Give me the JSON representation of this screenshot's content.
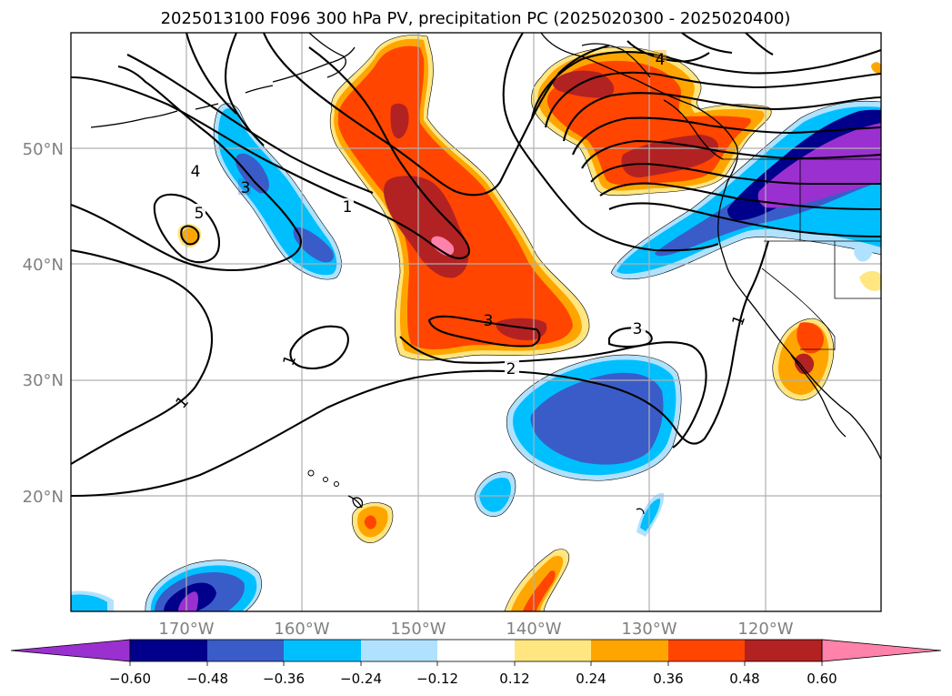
{
  "title": "2025013100 F096 300 hPa PV, precipitation PC (2025020300 - 2025020400)",
  "map": {
    "projection": "PlateCarree",
    "extent": {
      "lon_min": -180,
      "lon_max": -110,
      "lat_min": 10,
      "lat_max": 60
    },
    "lat_ticks": [
      {
        "lat": 50,
        "label": "50°N"
      },
      {
        "lat": 40,
        "label": "40°N"
      },
      {
        "lat": 30,
        "label": "30°N"
      },
      {
        "lat": 20,
        "label": "20°N"
      }
    ],
    "lon_ticks": [
      {
        "lon": -170,
        "label": "170°W"
      },
      {
        "lon": -160,
        "label": "160°W"
      },
      {
        "lon": -150,
        "label": "150°W"
      },
      {
        "lon": -140,
        "label": "140°W"
      },
      {
        "lon": -130,
        "label": "130°W"
      },
      {
        "lon": -120,
        "label": "120°W"
      }
    ],
    "gridlines": true
  },
  "colorbar": {
    "levels": [
      "−0.60",
      "−0.48",
      "−0.36",
      "−0.24",
      "−0.12",
      "0.12",
      "0.24",
      "0.36",
      "0.48",
      "0.60"
    ],
    "colors": [
      "#9b30d0",
      "#00008b",
      "#3a5cc8",
      "#00bfff",
      "#b0e2ff",
      "#ffffff",
      "#ffe680",
      "#ffa500",
      "#ff4500",
      "#b22222",
      "#ff82ab"
    ],
    "extend": "both"
  },
  "pv_contour_labels": [
    "4",
    "3",
    "5",
    "1",
    "4",
    "3",
    "2",
    "3",
    "1",
    "1",
    "1"
  ]
}
